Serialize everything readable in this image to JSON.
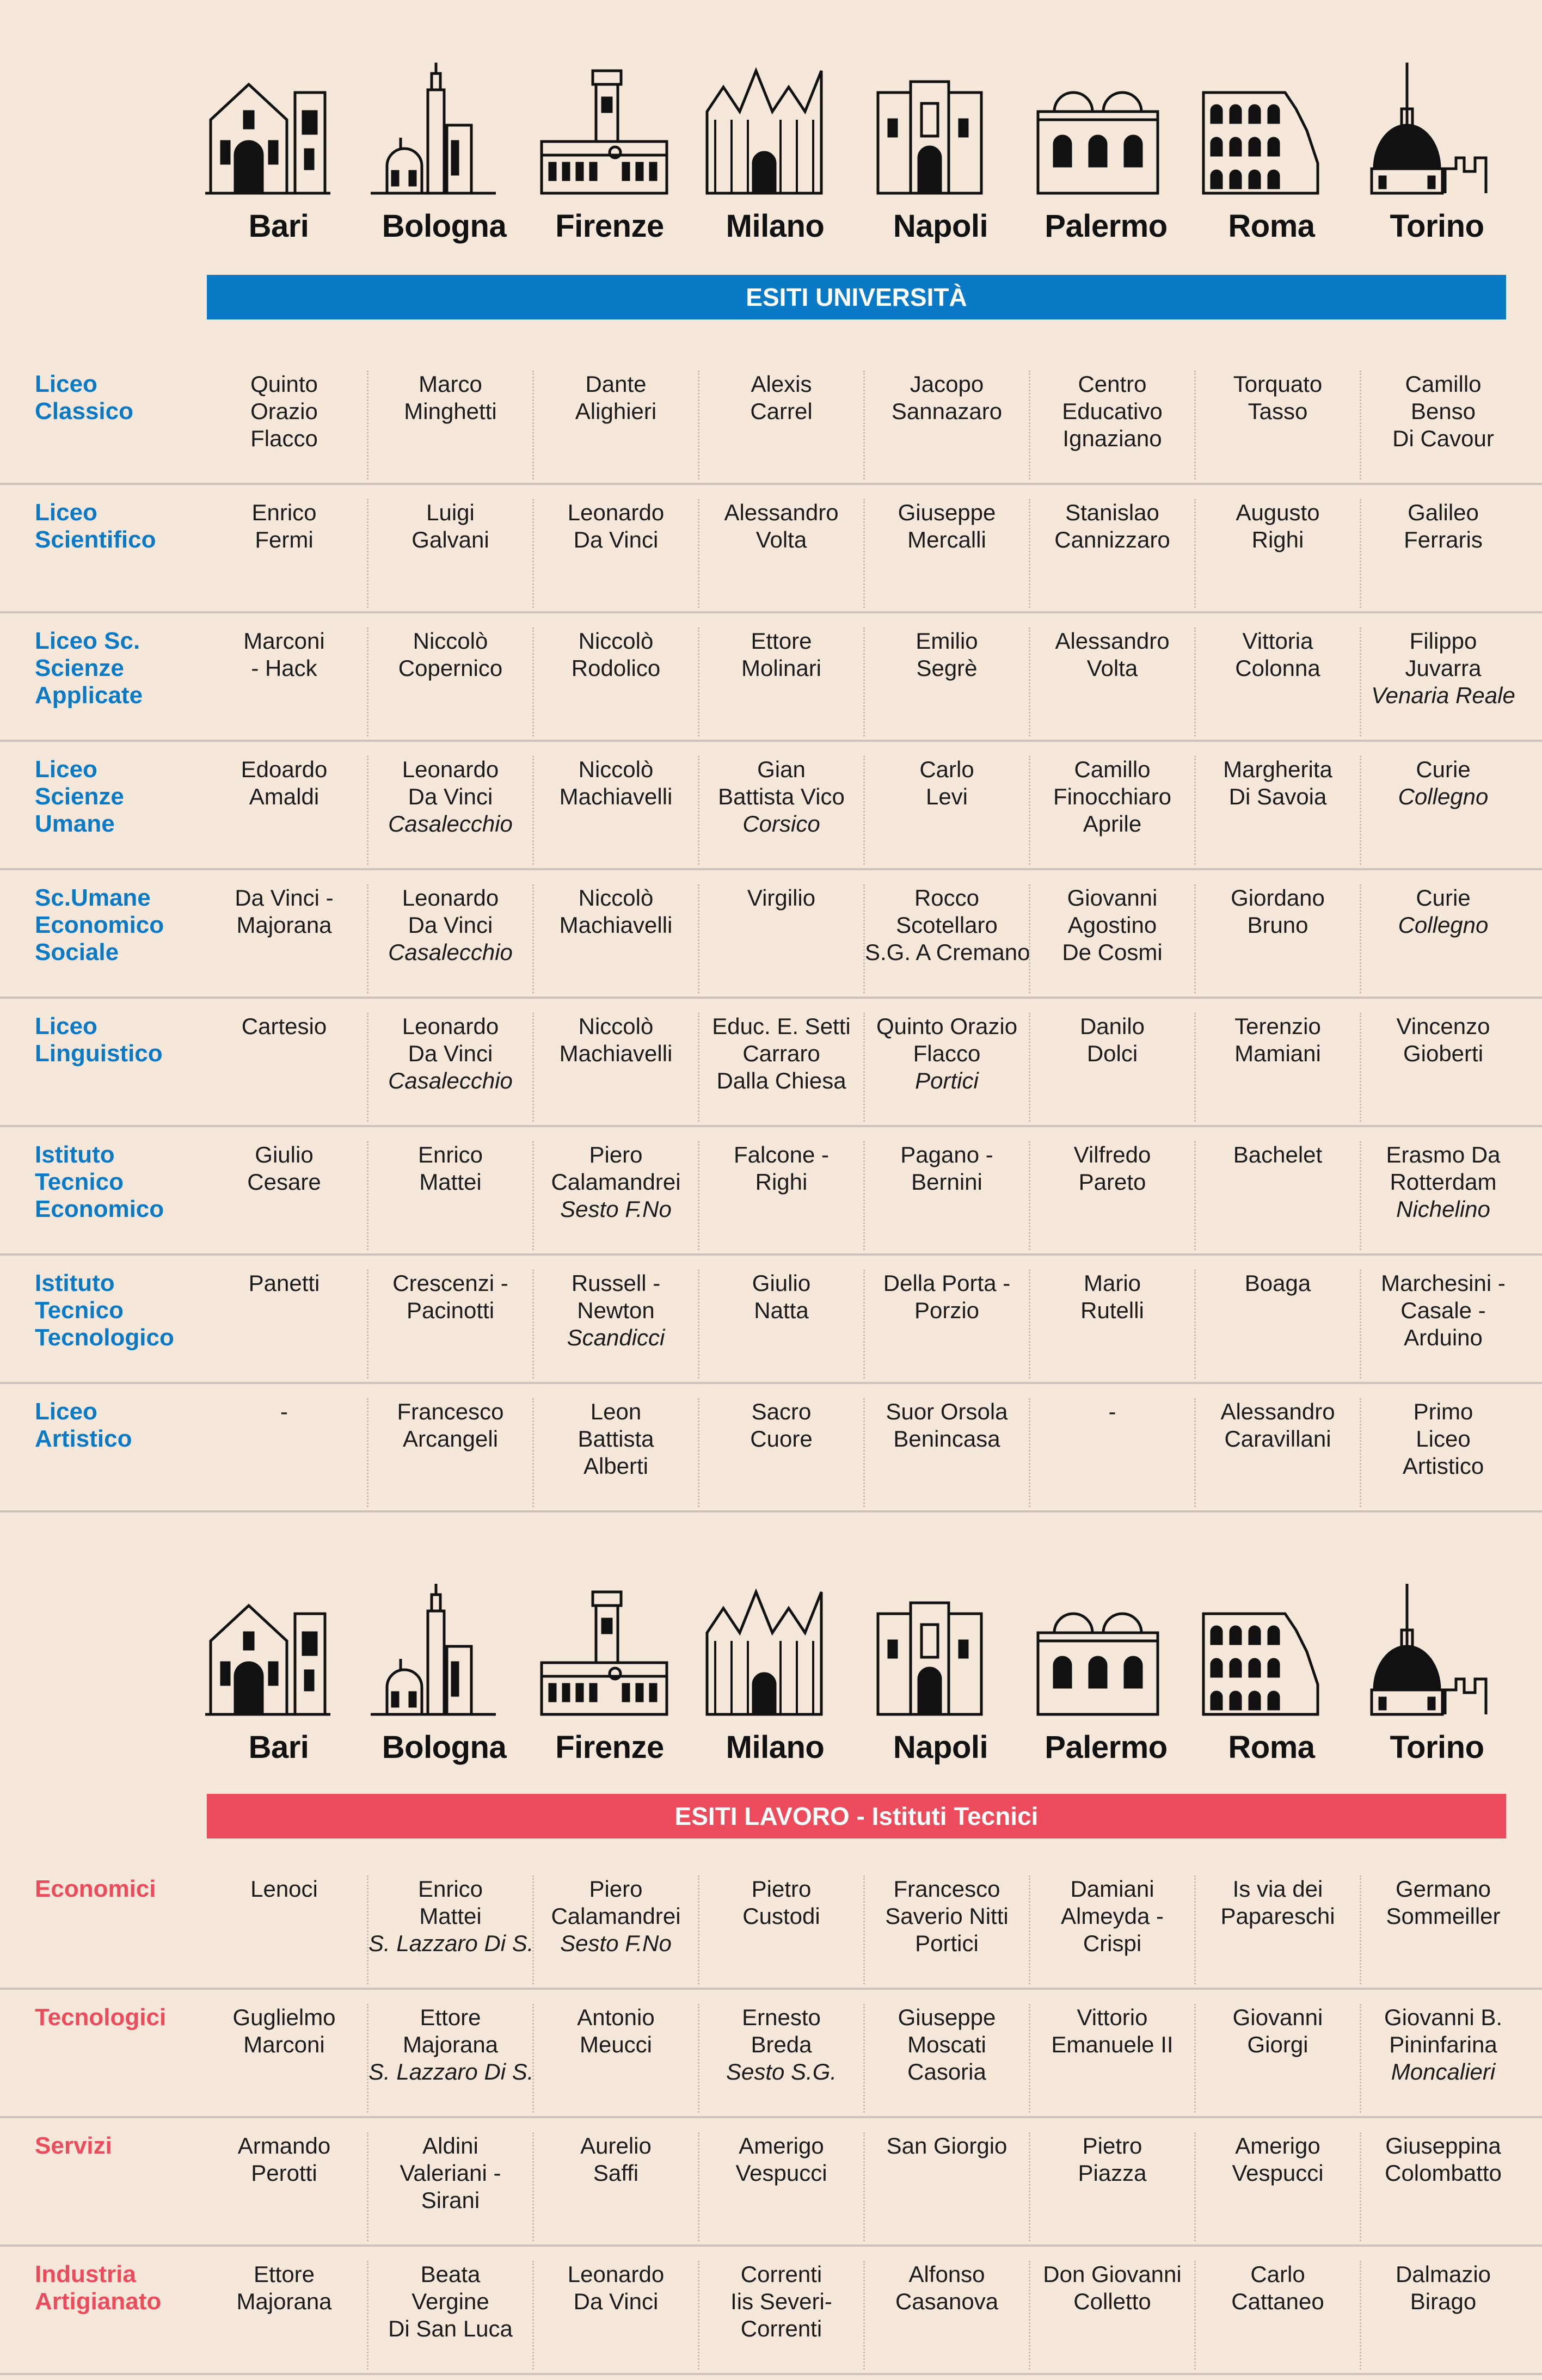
{
  "cities": [
    "Bari",
    "Bologna",
    "Firenze",
    "Milano",
    "Napoli",
    "Palermo",
    "Roma",
    "Torino"
  ],
  "city_icons": [
    "bari-cathedral-icon",
    "bologna-towers-icon",
    "firenze-palazzo-vecchio-icon",
    "milano-duomo-icon",
    "napoli-castel-nuovo-icon",
    "palermo-san-cataldo-icon",
    "roma-colosseum-icon",
    "torino-mole-icon"
  ],
  "colors": {
    "background": "#F5E7DA",
    "blue": "#0A7AC7",
    "red": "#EC4B5B",
    "divider": "#CDC3BA"
  },
  "university": {
    "title": "ESITI UNIVERSITÀ",
    "rows": [
      {
        "label": [
          "Liceo",
          "Classico"
        ],
        "cells": [
          {
            "lines": [
              "Quinto",
              "Orazio",
              "Flacco"
            ]
          },
          {
            "lines": [
              "Marco",
              "Minghetti"
            ]
          },
          {
            "lines": [
              "Dante",
              "Alighieri"
            ]
          },
          {
            "lines": [
              "Alexis",
              "Carrel"
            ]
          },
          {
            "lines": [
              "Jacopo",
              "Sannazaro"
            ]
          },
          {
            "lines": [
              "Centro",
              "Educativo",
              "Ignaziano"
            ]
          },
          {
            "lines": [
              "Torquato",
              "Tasso"
            ]
          },
          {
            "lines": [
              "Camillo",
              "Benso",
              "Di Cavour"
            ]
          }
        ]
      },
      {
        "label": [
          "Liceo",
          "Scientifico"
        ],
        "cells": [
          {
            "lines": [
              "Enrico",
              "Fermi"
            ]
          },
          {
            "lines": [
              "Luigi",
              "Galvani"
            ]
          },
          {
            "lines": [
              "Leonardo",
              "Da Vinci"
            ]
          },
          {
            "lines": [
              "Alessandro",
              "Volta"
            ]
          },
          {
            "lines": [
              "Giuseppe",
              "Mercalli"
            ]
          },
          {
            "lines": [
              "Stanislao",
              "Cannizzaro"
            ]
          },
          {
            "lines": [
              "Augusto",
              "Righi"
            ]
          },
          {
            "lines": [
              "Galileo",
              "Ferraris"
            ]
          }
        ]
      },
      {
        "label": [
          "Liceo Sc.",
          "Scienze",
          "Applicate"
        ],
        "cells": [
          {
            "lines": [
              "Marconi",
              "- Hack"
            ]
          },
          {
            "lines": [
              "Niccolò",
              "Copernico"
            ]
          },
          {
            "lines": [
              "Niccolò",
              "Rodolico"
            ]
          },
          {
            "lines": [
              "Ettore",
              "Molinari"
            ]
          },
          {
            "lines": [
              "Emilio",
              "Segrè"
            ]
          },
          {
            "lines": [
              "Alessandro",
              "Volta"
            ]
          },
          {
            "lines": [
              "Vittoria",
              "Colonna"
            ]
          },
          {
            "lines": [
              "Filippo",
              "Juvarra"
            ],
            "place": "Venaria Reale"
          }
        ]
      },
      {
        "label": [
          "Liceo",
          "Scienze",
          "Umane"
        ],
        "cells": [
          {
            "lines": [
              "Edoardo",
              "Amaldi"
            ]
          },
          {
            "lines": [
              "Leonardo",
              "Da Vinci"
            ],
            "place": "Casalecchio"
          },
          {
            "lines": [
              "Niccolò",
              "Machiavelli"
            ]
          },
          {
            "lines": [
              "Gian",
              "Battista Vico"
            ],
            "place": "Corsico"
          },
          {
            "lines": [
              "Carlo",
              "Levi"
            ]
          },
          {
            "lines": [
              "Camillo",
              "Finocchiaro",
              "Aprile"
            ]
          },
          {
            "lines": [
              "Margherita",
              "Di Savoia"
            ]
          },
          {
            "lines": [
              "Curie"
            ],
            "place": "Collegno"
          }
        ]
      },
      {
        "label": [
          "Sc.Umane",
          "Economico",
          "Sociale"
        ],
        "cells": [
          {
            "lines": [
              "Da Vinci -",
              "Majorana"
            ]
          },
          {
            "lines": [
              "Leonardo",
              "Da Vinci"
            ],
            "place": "Casalecchio"
          },
          {
            "lines": [
              "Niccolò",
              "Machiavelli"
            ]
          },
          {
            "lines": [
              "Virgilio"
            ]
          },
          {
            "lines": [
              "Rocco",
              "Scotellaro",
              "S.G. A Cremano"
            ]
          },
          {
            "lines": [
              "Giovanni",
              "Agostino",
              "De Cosmi"
            ]
          },
          {
            "lines": [
              "Giordano",
              "Bruno"
            ]
          },
          {
            "lines": [
              "Curie"
            ],
            "place": "Collegno"
          }
        ]
      },
      {
        "label": [
          "Liceo",
          "Linguistico"
        ],
        "cells": [
          {
            "lines": [
              "Cartesio"
            ]
          },
          {
            "lines": [
              "Leonardo",
              "Da Vinci"
            ],
            "place": "Casalecchio"
          },
          {
            "lines": [
              "Niccolò",
              "Machiavelli"
            ]
          },
          {
            "lines": [
              "Educ. E. Setti",
              "Carraro",
              "Dalla Chiesa"
            ]
          },
          {
            "lines": [
              "Quinto Orazio",
              "Flacco"
            ],
            "place": "Portici"
          },
          {
            "lines": [
              "Danilo",
              "Dolci"
            ]
          },
          {
            "lines": [
              "Terenzio",
              "Mamiani"
            ]
          },
          {
            "lines": [
              "Vincenzo",
              "Gioberti"
            ]
          }
        ]
      },
      {
        "label": [
          "Istituto",
          "Tecnico",
          "Economico"
        ],
        "cells": [
          {
            "lines": [
              "Giulio",
              "Cesare"
            ]
          },
          {
            "lines": [
              "Enrico",
              "Mattei"
            ]
          },
          {
            "lines": [
              "Piero",
              "Calamandrei"
            ],
            "place": "Sesto F.No"
          },
          {
            "lines": [
              "Falcone -",
              "Righi"
            ]
          },
          {
            "lines": [
              "Pagano -",
              "Bernini"
            ]
          },
          {
            "lines": [
              "Vilfredo",
              "Pareto"
            ]
          },
          {
            "lines": [
              "Bachelet"
            ]
          },
          {
            "lines": [
              "Erasmo Da",
              "Rotterdam"
            ],
            "place": "Nichelino"
          }
        ]
      },
      {
        "label": [
          "Istituto",
          "Tecnico",
          "Tecnologico"
        ],
        "cells": [
          {
            "lines": [
              "Panetti"
            ]
          },
          {
            "lines": [
              "Crescenzi -",
              "Pacinotti"
            ]
          },
          {
            "lines": [
              "Russell -",
              "Newton"
            ],
            "place": "Scandicci"
          },
          {
            "lines": [
              "Giulio",
              "Natta"
            ]
          },
          {
            "lines": [
              "Della Porta -",
              "Porzio"
            ]
          },
          {
            "lines": [
              "Mario",
              "Rutelli"
            ]
          },
          {
            "lines": [
              "Boaga"
            ]
          },
          {
            "lines": [
              "Marchesini -",
              "Casale -",
              "Arduino"
            ]
          }
        ]
      },
      {
        "label": [
          "Liceo",
          "Artistico"
        ],
        "cells": [
          {
            "lines": [
              "-"
            ]
          },
          {
            "lines": [
              "Francesco",
              "Arcangeli"
            ]
          },
          {
            "lines": [
              "Leon",
              "Battista",
              "Alberti"
            ]
          },
          {
            "lines": [
              "Sacro",
              "Cuore"
            ]
          },
          {
            "lines": [
              "Suor Orsola",
              "Benincasa"
            ]
          },
          {
            "lines": [
              "-"
            ]
          },
          {
            "lines": [
              "Alessandro",
              "Caravillani"
            ]
          },
          {
            "lines": [
              "Primo",
              "Liceo",
              "Artistico"
            ]
          }
        ]
      }
    ]
  },
  "work": {
    "title": "ESITI LAVORO - Istituti Tecnici",
    "rows": [
      {
        "label": [
          "Economici"
        ],
        "cells": [
          {
            "lines": [
              "Lenoci"
            ]
          },
          {
            "lines": [
              "Enrico",
              "Mattei"
            ],
            "place": "S. Lazzaro Di S."
          },
          {
            "lines": [
              "Piero",
              "Calamandrei"
            ],
            "place": "Sesto F.No"
          },
          {
            "lines": [
              "Pietro",
              "Custodi"
            ]
          },
          {
            "lines": [
              "Francesco",
              "Saverio Nitti",
              "Portici"
            ]
          },
          {
            "lines": [
              "Damiani",
              "Almeyda -",
              "Crispi"
            ]
          },
          {
            "lines": [
              "Is via dei",
              "Papareschi"
            ]
          },
          {
            "lines": [
              "Germano",
              "Sommeiller"
            ]
          }
        ]
      },
      {
        "label": [
          "Tecnologici"
        ],
        "cells": [
          {
            "lines": [
              "Guglielmo",
              "Marconi"
            ]
          },
          {
            "lines": [
              "Ettore",
              "Majorana"
            ],
            "place": "S. Lazzaro Di S."
          },
          {
            "lines": [
              "Antonio",
              "Meucci"
            ]
          },
          {
            "lines": [
              "Ernesto",
              "Breda"
            ],
            "place": "Sesto S.G."
          },
          {
            "lines": [
              "Giuseppe",
              "Moscati",
              "Casoria"
            ]
          },
          {
            "lines": [
              "Vittorio",
              "Emanuele II"
            ]
          },
          {
            "lines": [
              "Giovanni",
              "Giorgi"
            ]
          },
          {
            "lines": [
              "Giovanni B.",
              "Pininfarina"
            ],
            "place": "Moncalieri"
          }
        ]
      },
      {
        "label": [
          "Servizi"
        ],
        "cells": [
          {
            "lines": [
              "Armando",
              "Perotti"
            ]
          },
          {
            "lines": [
              "Aldini",
              "Valeriani -",
              "Sirani"
            ]
          },
          {
            "lines": [
              "Aurelio",
              "Saffi"
            ]
          },
          {
            "lines": [
              "Amerigo",
              "Vespucci"
            ]
          },
          {
            "lines": [
              "San Giorgio"
            ]
          },
          {
            "lines": [
              "Pietro",
              "Piazza"
            ]
          },
          {
            "lines": [
              "Amerigo",
              "Vespucci"
            ]
          },
          {
            "lines": [
              "Giuseppina",
              "Colombatto"
            ]
          }
        ]
      },
      {
        "label": [
          "Industria",
          "Artigianato"
        ],
        "cells": [
          {
            "lines": [
              "Ettore",
              "Majorana"
            ]
          },
          {
            "lines": [
              "Beata",
              "Vergine",
              "Di San Luca"
            ]
          },
          {
            "lines": [
              "Leonardo",
              "Da Vinci"
            ]
          },
          {
            "lines": [
              "Correnti",
              "Iis Severi-",
              "Correnti"
            ]
          },
          {
            "lines": [
              "Alfonso",
              "Casanova"
            ]
          },
          {
            "lines": [
              "Don Giovanni",
              "Colletto"
            ]
          },
          {
            "lines": [
              "Carlo",
              "Cattaneo"
            ]
          },
          {
            "lines": [
              "Dalmazio",
              "Birago"
            ]
          }
        ]
      }
    ]
  }
}
